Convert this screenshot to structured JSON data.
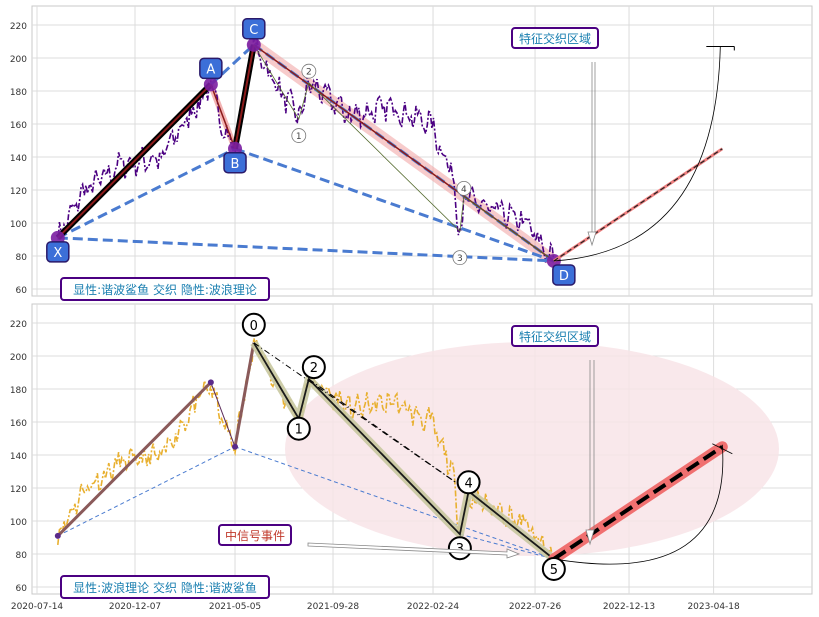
{
  "chart_data": [
    {
      "type": "line",
      "title": "",
      "xlabel": "",
      "ylabel": "",
      "ylim": [
        55,
        230
      ],
      "yticks": [
        60,
        80,
        100,
        120,
        140,
        160,
        180,
        200,
        220
      ],
      "grid": true,
      "legend": "bottom-left",
      "caption": "显性:谐波鲨鱼 交织 隐性:波浪理论",
      "zone_label": "特征交织区域",
      "points": [
        {
          "label": "X",
          "x": "2020-08-14",
          "y": 91
        },
        {
          "label": "A",
          "x": "2021-03-30",
          "y": 184
        },
        {
          "label": "B",
          "x": "2021-05-05",
          "y": 145
        },
        {
          "label": "C",
          "x": "2021-06-02",
          "y": 208
        },
        {
          "label": "D",
          "x": "2022-08-23",
          "y": 77
        }
      ],
      "wave_markers": [
        {
          "label": "1",
          "x": "2021-08-08",
          "y": 153
        },
        {
          "label": "2",
          "x": "2021-08-23",
          "y": 192
        },
        {
          "label": "3",
          "x": "2022-04-05",
          "y": 79
        },
        {
          "label": "4",
          "x": "2022-04-11",
          "y": 121
        }
      ],
      "projection": [
        {
          "x": "2022-08-23",
          "y": 77
        },
        {
          "x": "2023-05-01",
          "y": 145
        }
      ],
      "projection_target": {
        "x": "2023-04-28",
        "y": 207
      },
      "colors": {
        "price": "#4b0082",
        "pattern": "#4a7bd0",
        "impulse": "#000000",
        "glow": "#f0a0a0",
        "label_box": "#3c6fd8"
      }
    },
    {
      "type": "line",
      "title": "",
      "xlabel": "",
      "ylabel": "",
      "ylim": [
        55,
        233
      ],
      "yticks": [
        60,
        80,
        100,
        120,
        140,
        160,
        180,
        200,
        220
      ],
      "xticks": [
        "2020-07-14",
        "2020-12-07",
        "2021-05-05",
        "2021-09-28",
        "2022-02-24",
        "2022-07-26",
        "2022-12-13",
        "2023-04-18"
      ],
      "grid": true,
      "legend": "bottom-left",
      "caption": "显性:波浪理论 交织 隐性:谐波鲨鱼",
      "zone_label": "特征交织区域",
      "signal_label": "中信号事件",
      "waves": [
        {
          "label": "0",
          "x": "2021-06-02",
          "y": 208
        },
        {
          "label": "1",
          "x": "2021-08-08",
          "y": 162
        },
        {
          "label": "2",
          "x": "2021-08-23",
          "y": 186
        },
        {
          "label": "3",
          "x": "2022-04-05",
          "y": 92
        },
        {
          "label": "4",
          "x": "2022-04-18",
          "y": 118
        },
        {
          "label": "5",
          "x": "2022-08-23",
          "y": 77
        }
      ],
      "harmonic": [
        {
          "x": "2020-08-14",
          "y": 91
        },
        {
          "x": "2021-03-30",
          "y": 184
        },
        {
          "x": "2021-05-05",
          "y": 145
        },
        {
          "x": "2021-06-02",
          "y": 208
        }
      ],
      "projection": [
        {
          "x": "2022-08-23",
          "y": 77
        },
        {
          "x": "2023-05-01",
          "y": 145
        }
      ],
      "colors": {
        "price": "#e8b030",
        "wave": "#000000",
        "wave_glow": "#c8c8a0",
        "harmonic": "#8a5a5a",
        "projection": "#f07070",
        "zone": "#f8e4e8"
      }
    }
  ]
}
